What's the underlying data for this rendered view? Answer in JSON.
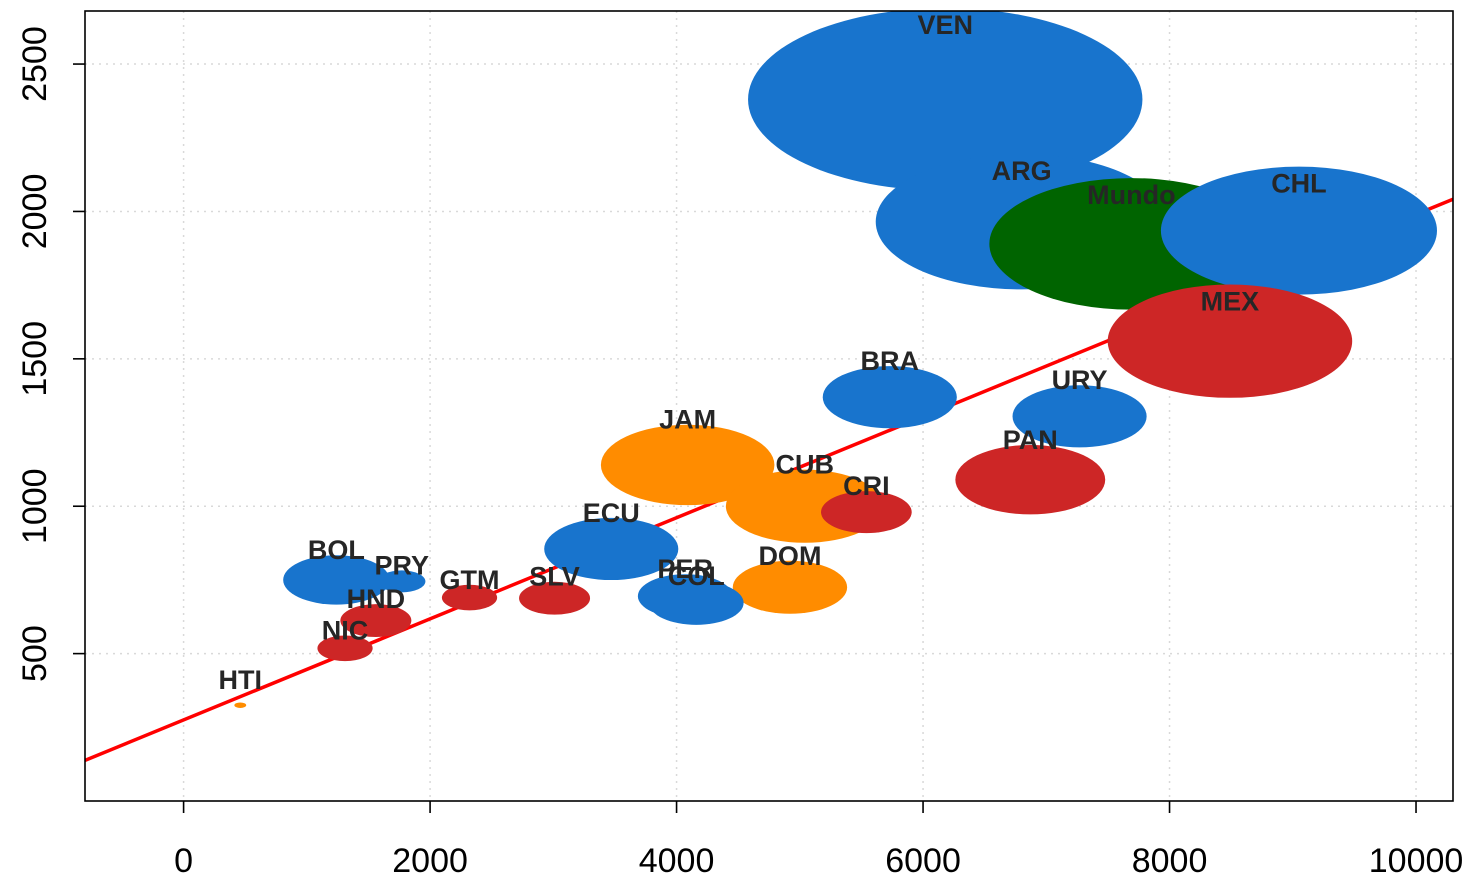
{
  "chart_data": {
    "type": "scatter",
    "title": "",
    "xlabel": "",
    "ylabel": "",
    "xlim": [
      -800,
      10300
    ],
    "ylim": [
      0,
      2680
    ],
    "x_ticks": [
      0,
      2000,
      4000,
      6000,
      8000,
      10000
    ],
    "y_ticks": [
      500,
      1000,
      1500,
      2000,
      2500
    ],
    "grid": true,
    "colors": {
      "blue": "#1874CD",
      "red": "#CD2626",
      "orange": "#FF8C00",
      "green": "#006400",
      "fit_line": "#FF0000"
    },
    "trend_line": {
      "color": "#FF0000",
      "intercept": 275,
      "slope": 0.1715
    },
    "points": [
      {
        "label": "VEN",
        "x": 6180,
        "y": 2380,
        "size": 10.0,
        "color": "#1874CD"
      },
      {
        "label": "ARG",
        "x": 6800,
        "y": 1965,
        "size": 7.4,
        "color": "#1874CD"
      },
      {
        "label": "Mundo",
        "x": 7690,
        "y": 1890,
        "size": 7.2,
        "color": "#006400"
      },
      {
        "label": "CHL",
        "x": 9050,
        "y": 1935,
        "size": 7.0,
        "color": "#1874CD"
      },
      {
        "label": "MEX",
        "x": 8490,
        "y": 1560,
        "size": 6.2,
        "color": "#CD2626"
      },
      {
        "label": "BRA",
        "x": 5730,
        "y": 1370,
        "size": 3.4,
        "color": "#1874CD"
      },
      {
        "label": "URY",
        "x": 7270,
        "y": 1305,
        "size": 3.4,
        "color": "#1874CD"
      },
      {
        "label": "JAM",
        "x": 4090,
        "y": 1140,
        "size": 4.4,
        "color": "#FF8C00"
      },
      {
        "label": "PAN",
        "x": 6870,
        "y": 1090,
        "size": 3.8,
        "color": "#CD2626"
      },
      {
        "label": "CUB",
        "x": 5040,
        "y": 1000,
        "size": 4.0,
        "color": "#FF8C00"
      },
      {
        "label": "CRI",
        "x": 5540,
        "y": 980,
        "size": 2.3,
        "color": "#CD2626"
      },
      {
        "label": "ECU",
        "x": 3470,
        "y": 855,
        "size": 3.4,
        "color": "#1874CD"
      },
      {
        "label": "BOL",
        "x": 1240,
        "y": 750,
        "size": 2.7,
        "color": "#1874CD"
      },
      {
        "label": "PRY",
        "x": 1770,
        "y": 745,
        "size": 1.2,
        "color": "#1874CD"
      },
      {
        "label": "DOM",
        "x": 4920,
        "y": 725,
        "size": 2.9,
        "color": "#FF8C00"
      },
      {
        "label": "PER",
        "x": 4070,
        "y": 695,
        "size": 2.4,
        "color": "#1874CD"
      },
      {
        "label": "COL",
        "x": 4160,
        "y": 672,
        "size": 2.4,
        "color": "#1874CD"
      },
      {
        "label": "GTM",
        "x": 2320,
        "y": 690,
        "size": 1.4,
        "color": "#CD2626"
      },
      {
        "label": "SLV",
        "x": 3010,
        "y": 688,
        "size": 1.8,
        "color": "#CD2626"
      },
      {
        "label": "HND",
        "x": 1560,
        "y": 612,
        "size": 1.8,
        "color": "#CD2626"
      },
      {
        "label": "NIC",
        "x": 1310,
        "y": 518,
        "size": 1.4,
        "color": "#CD2626"
      },
      {
        "label": "HTI",
        "x": 460,
        "y": 325,
        "size": 0.3,
        "color": "#FF8C00"
      }
    ]
  }
}
